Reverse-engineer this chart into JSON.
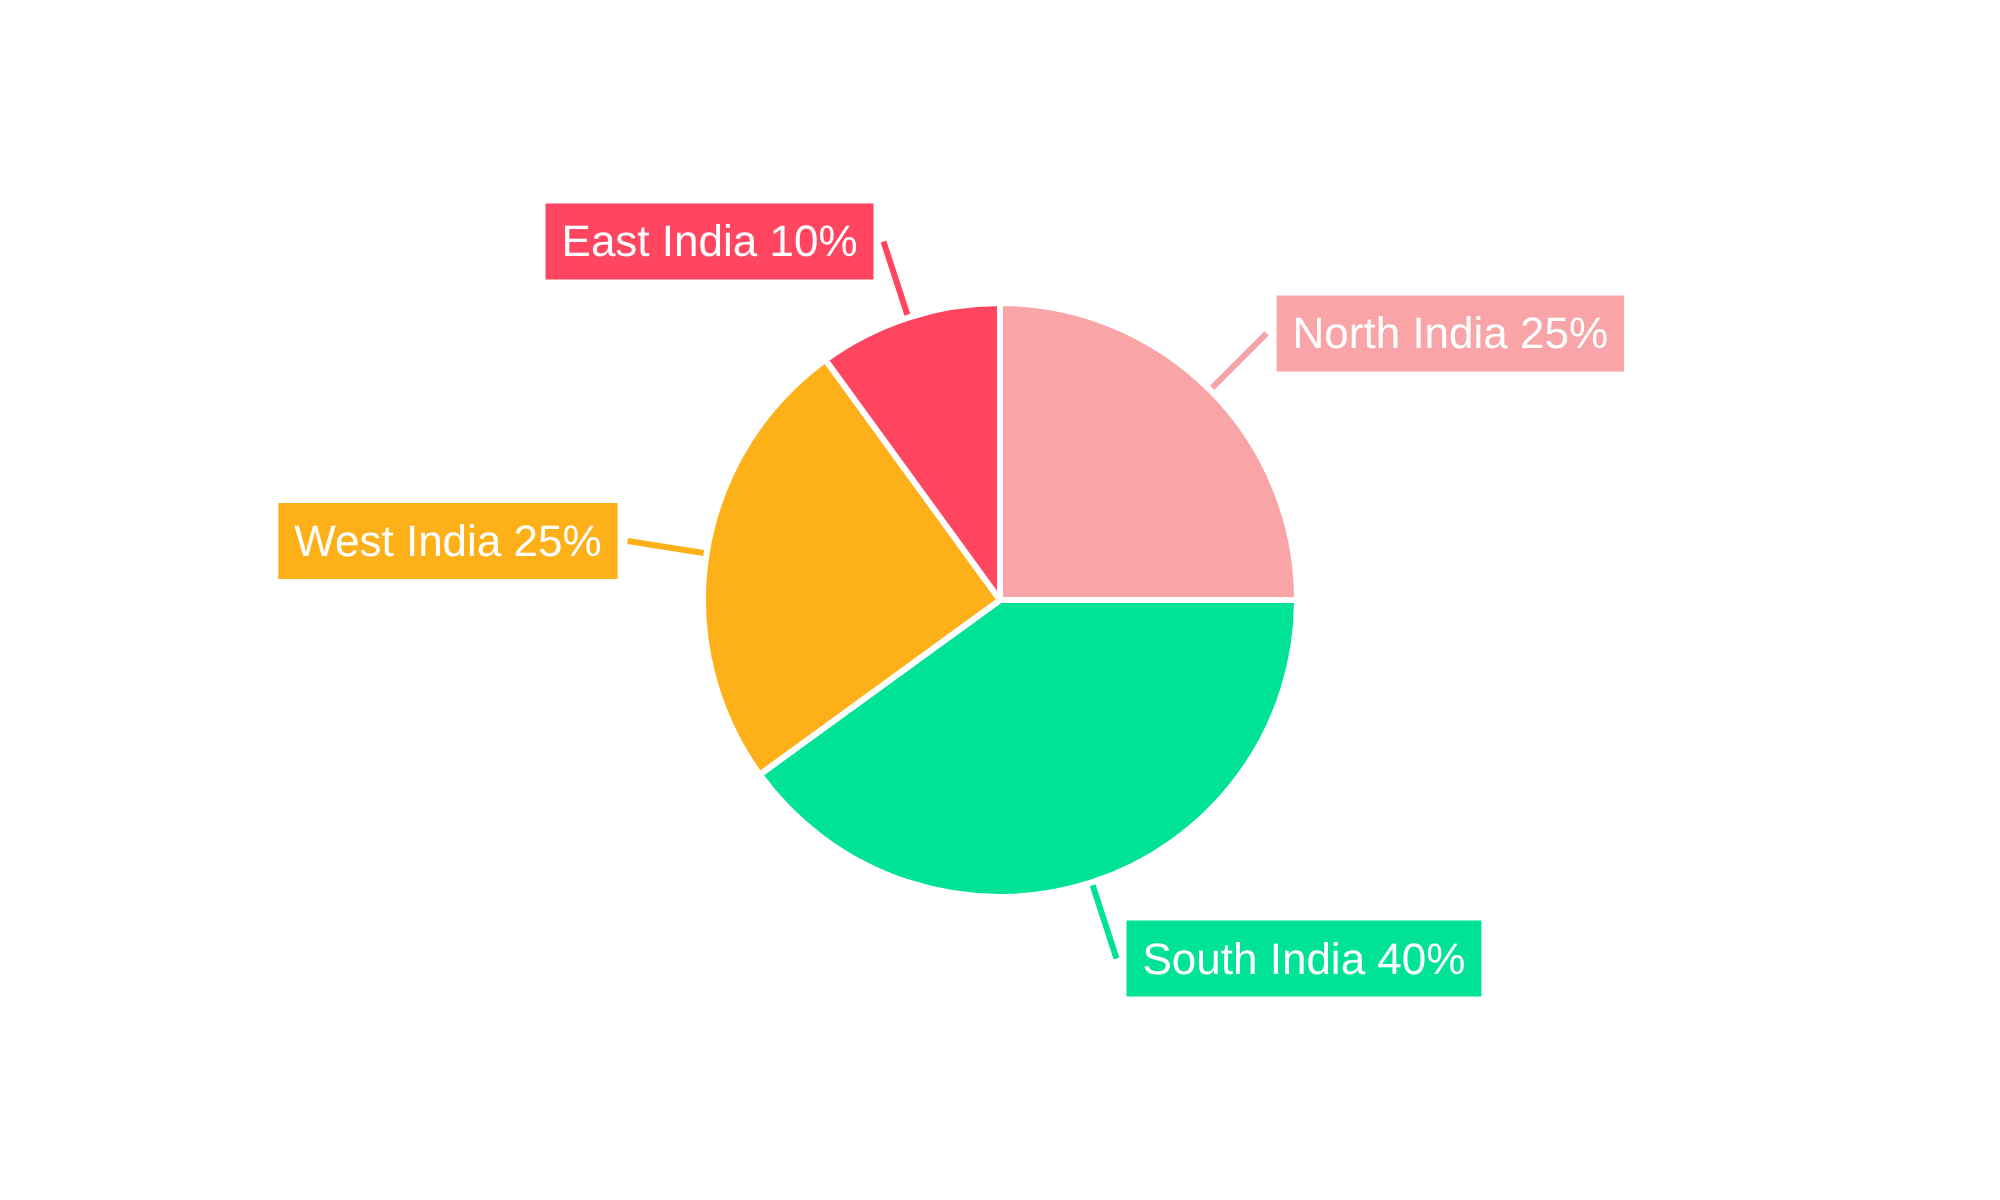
{
  "chart_data": {
    "type": "pie",
    "categories": [
      "North India",
      "South India",
      "West India",
      "East India"
    ],
    "values": [
      25,
      40,
      25,
      10
    ],
    "value_labels": [
      "25%",
      "40%",
      "25%",
      "10%"
    ],
    "colors": [
      "#f9a4a6",
      "#00e396",
      "#feb019",
      "#ff4560"
    ],
    "legend": false
  }
}
